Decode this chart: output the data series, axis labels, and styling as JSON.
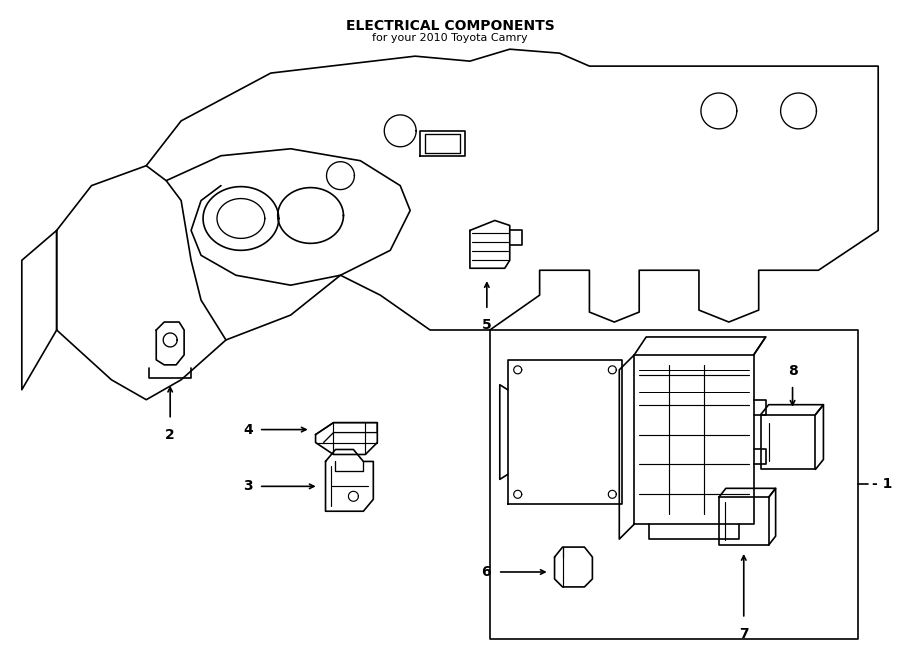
{
  "title": "ELECTRICAL COMPONENTS",
  "subtitle": "for your 2010 Toyota Camry",
  "bg_color": "#ffffff",
  "line_color": "#000000",
  "line_width": 1.2,
  "fig_width": 9.0,
  "fig_height": 6.61,
  "label_fontsize": 10,
  "title_fontsize": 10
}
